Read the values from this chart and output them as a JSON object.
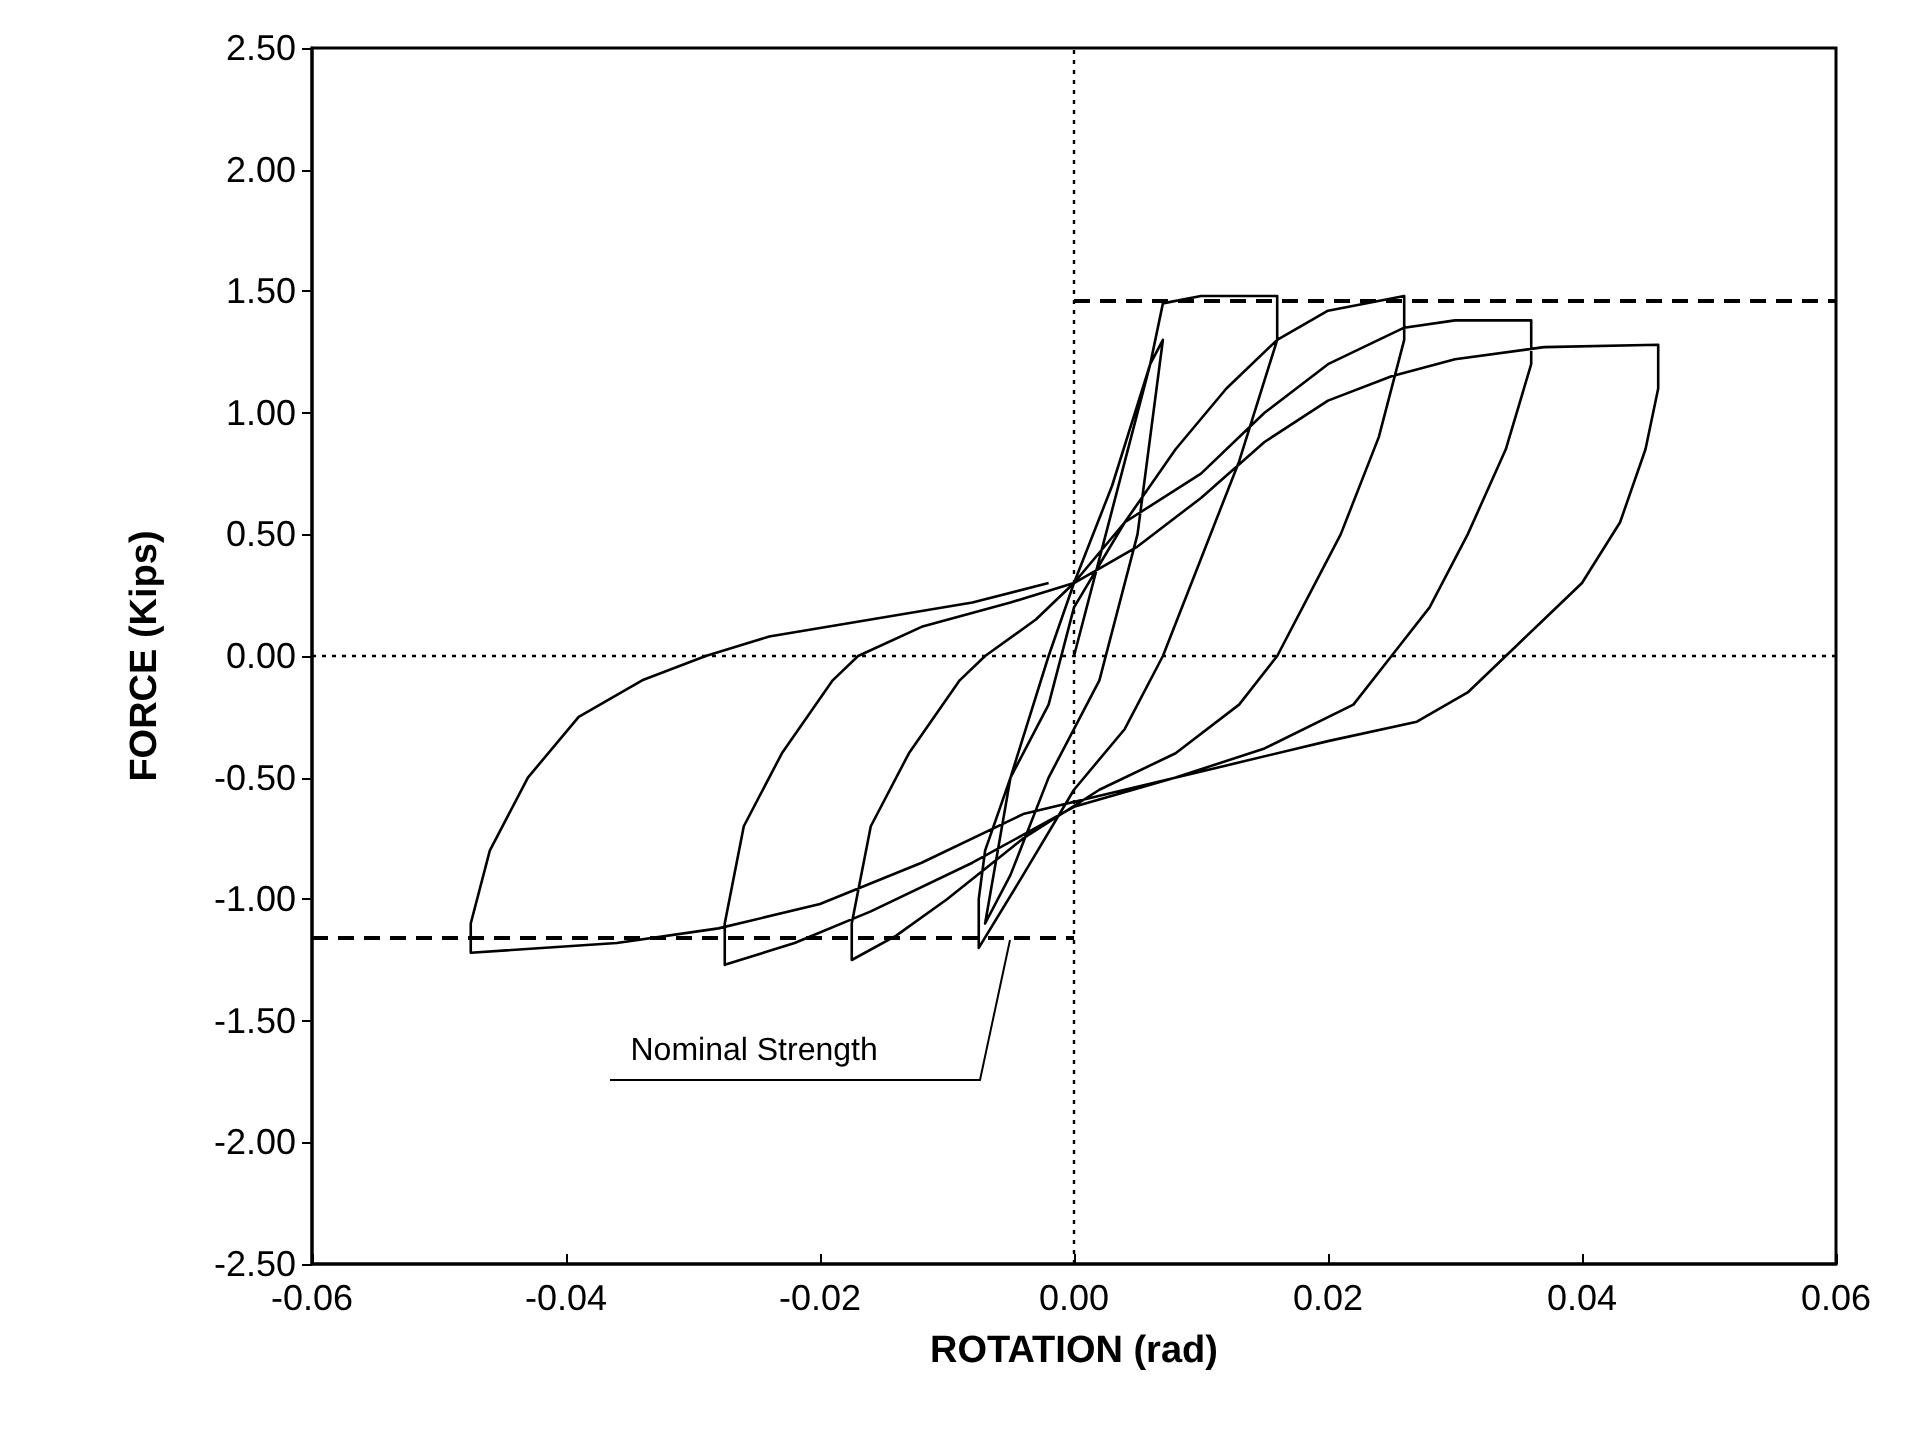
{
  "chart_data": {
    "type": "line",
    "xlabel": "ROTATION (rad)",
    "ylabel": "FORCE (Kips)",
    "xlim": [
      -0.06,
      0.06
    ],
    "xticks": [
      {
        "value": -0.06,
        "label": "-0.06"
      },
      {
        "value": -0.04,
        "label": "-0.04"
      },
      {
        "value": -0.02,
        "label": "-0.02"
      },
      {
        "value": 0,
        "label": "0.00"
      },
      {
        "value": 0.02,
        "label": "0.02"
      },
      {
        "value": 0.04,
        "label": "0.04"
      },
      {
        "value": 0.06,
        "label": "0.06"
      }
    ],
    "ylim": [
      -2.5,
      2.5
    ],
    "yticks": [
      {
        "value": -2.5,
        "label": "-2.50"
      },
      {
        "value": -2,
        "label": "-2.00"
      },
      {
        "value": -1.5,
        "label": "-1.50"
      },
      {
        "value": -1,
        "label": "-1.00"
      },
      {
        "value": -0.5,
        "label": "-0.50"
      },
      {
        "value": 0,
        "label": "0.00"
      },
      {
        "value": 0.5,
        "label": "0.50"
      },
      {
        "value": 1,
        "label": "1.00"
      },
      {
        "value": 1.5,
        "label": "1.50"
      },
      {
        "value": 2,
        "label": "2.00"
      },
      {
        "value": 2.5,
        "label": "2.50"
      }
    ],
    "grid": false,
    "marker": "none",
    "series": [
      {
        "color": "#000000",
        "line_style": "solid",
        "x": [
          0,
          0.003,
          0.006,
          0.007,
          0.005,
          0.002,
          -0.002,
          -0.005,
          -0.007,
          -0.005,
          -0.002,
          0,
          0.003,
          0.006,
          0.007,
          0.01,
          0.016,
          0.016,
          0.013,
          0.01,
          0.007,
          0.004,
          0,
          -0.004,
          -0.0075,
          -0.0075,
          -0.007,
          -0.005,
          -0.002,
          0,
          0.004,
          0.008,
          0.012,
          0.016,
          0.02,
          0.026,
          0.026,
          0.024,
          0.021,
          0.018,
          0.016,
          0.013,
          0.008,
          0.002,
          -0.004,
          -0.01,
          -0.014,
          -0.0175,
          -0.0175,
          -0.016,
          -0.013,
          -0.009,
          -0.007,
          -0.003,
          0,
          0.004,
          0.01,
          0.015,
          0.02,
          0.026,
          0.03,
          0.036,
          0.036,
          0.034,
          0.031,
          0.028,
          0.025,
          0.022,
          0.015,
          0.008,
          0,
          -0.008,
          -0.016,
          -0.022,
          -0.0275,
          -0.0275,
          -0.026,
          -0.023,
          -0.019,
          -0.017,
          -0.012,
          -0.005,
          0,
          0.005,
          0.01,
          0.015,
          0.02,
          0.025,
          0.03,
          0.037,
          0.046,
          0.046,
          0.045,
          0.043,
          0.04,
          0.037,
          0.034,
          0.031,
          0.027,
          0.02,
          0.012,
          0.004,
          -0.004,
          -0.012,
          -0.02,
          -0.028,
          -0.036,
          -0.0475,
          -0.0475,
          -0.046,
          -0.043,
          -0.039,
          -0.034,
          -0.029,
          -0.024,
          -0.016,
          -0.008,
          -0.002
        ],
        "values": [
          0,
          0.6,
          1.2,
          1.3,
          0.5,
          -0.1,
          -0.5,
          -0.9,
          -1.1,
          -0.5,
          0,
          0.3,
          0.7,
          1.2,
          1.45,
          1.48,
          1.48,
          1.3,
          0.8,
          0.4,
          0,
          -0.3,
          -0.55,
          -0.9,
          -1.2,
          -1.0,
          -0.8,
          -0.5,
          -0.2,
          0.2,
          0.55,
          0.85,
          1.1,
          1.3,
          1.42,
          1.48,
          1.3,
          0.9,
          0.5,
          0.2,
          0,
          -0.2,
          -0.4,
          -0.55,
          -0.75,
          -1,
          -1.15,
          -1.25,
          -1.1,
          -0.7,
          -0.4,
          -0.1,
          0,
          0.15,
          0.3,
          0.55,
          0.75,
          1,
          1.2,
          1.35,
          1.38,
          1.38,
          1.2,
          0.85,
          0.5,
          0.2,
          0,
          -0.2,
          -0.38,
          -0.5,
          -0.62,
          -0.85,
          -1.05,
          -1.18,
          -1.27,
          -1.1,
          -0.7,
          -0.4,
          -0.1,
          0,
          0.12,
          0.22,
          0.3,
          0.45,
          0.65,
          0.88,
          1.05,
          1.15,
          1.22,
          1.27,
          1.28,
          1.1,
          0.85,
          0.55,
          0.3,
          0.15,
          0,
          -0.15,
          -0.27,
          -0.35,
          -0.45,
          -0.55,
          -0.65,
          -0.85,
          -1.02,
          -1.12,
          -1.18,
          -1.22,
          -1.1,
          -0.8,
          -0.5,
          -0.25,
          -0.1,
          0,
          0.08,
          0.15,
          0.22,
          0.3
        ]
      },
      {
        "color": "#000000",
        "line_style": "dashed",
        "x": [
          0,
          0.06
        ],
        "values": [
          1.46,
          1.46
        ]
      },
      {
        "color": "#000000",
        "line_style": "dashed",
        "x": [
          -0.06,
          0
        ],
        "values": [
          -1.16,
          -1.16
        ]
      },
      {
        "color": "#000000",
        "line_style": "dotted",
        "x": [
          0,
          0
        ],
        "values": [
          -2.5,
          2.5
        ]
      },
      {
        "color": "#000000",
        "line_style": "dotted",
        "x": [
          -0.06,
          0.06
        ],
        "values": [
          0,
          0
        ]
      }
    ],
    "annotations": [
      {
        "text": "Nominal Strength",
        "x": -0.005,
        "y": -1.16
      }
    ]
  }
}
